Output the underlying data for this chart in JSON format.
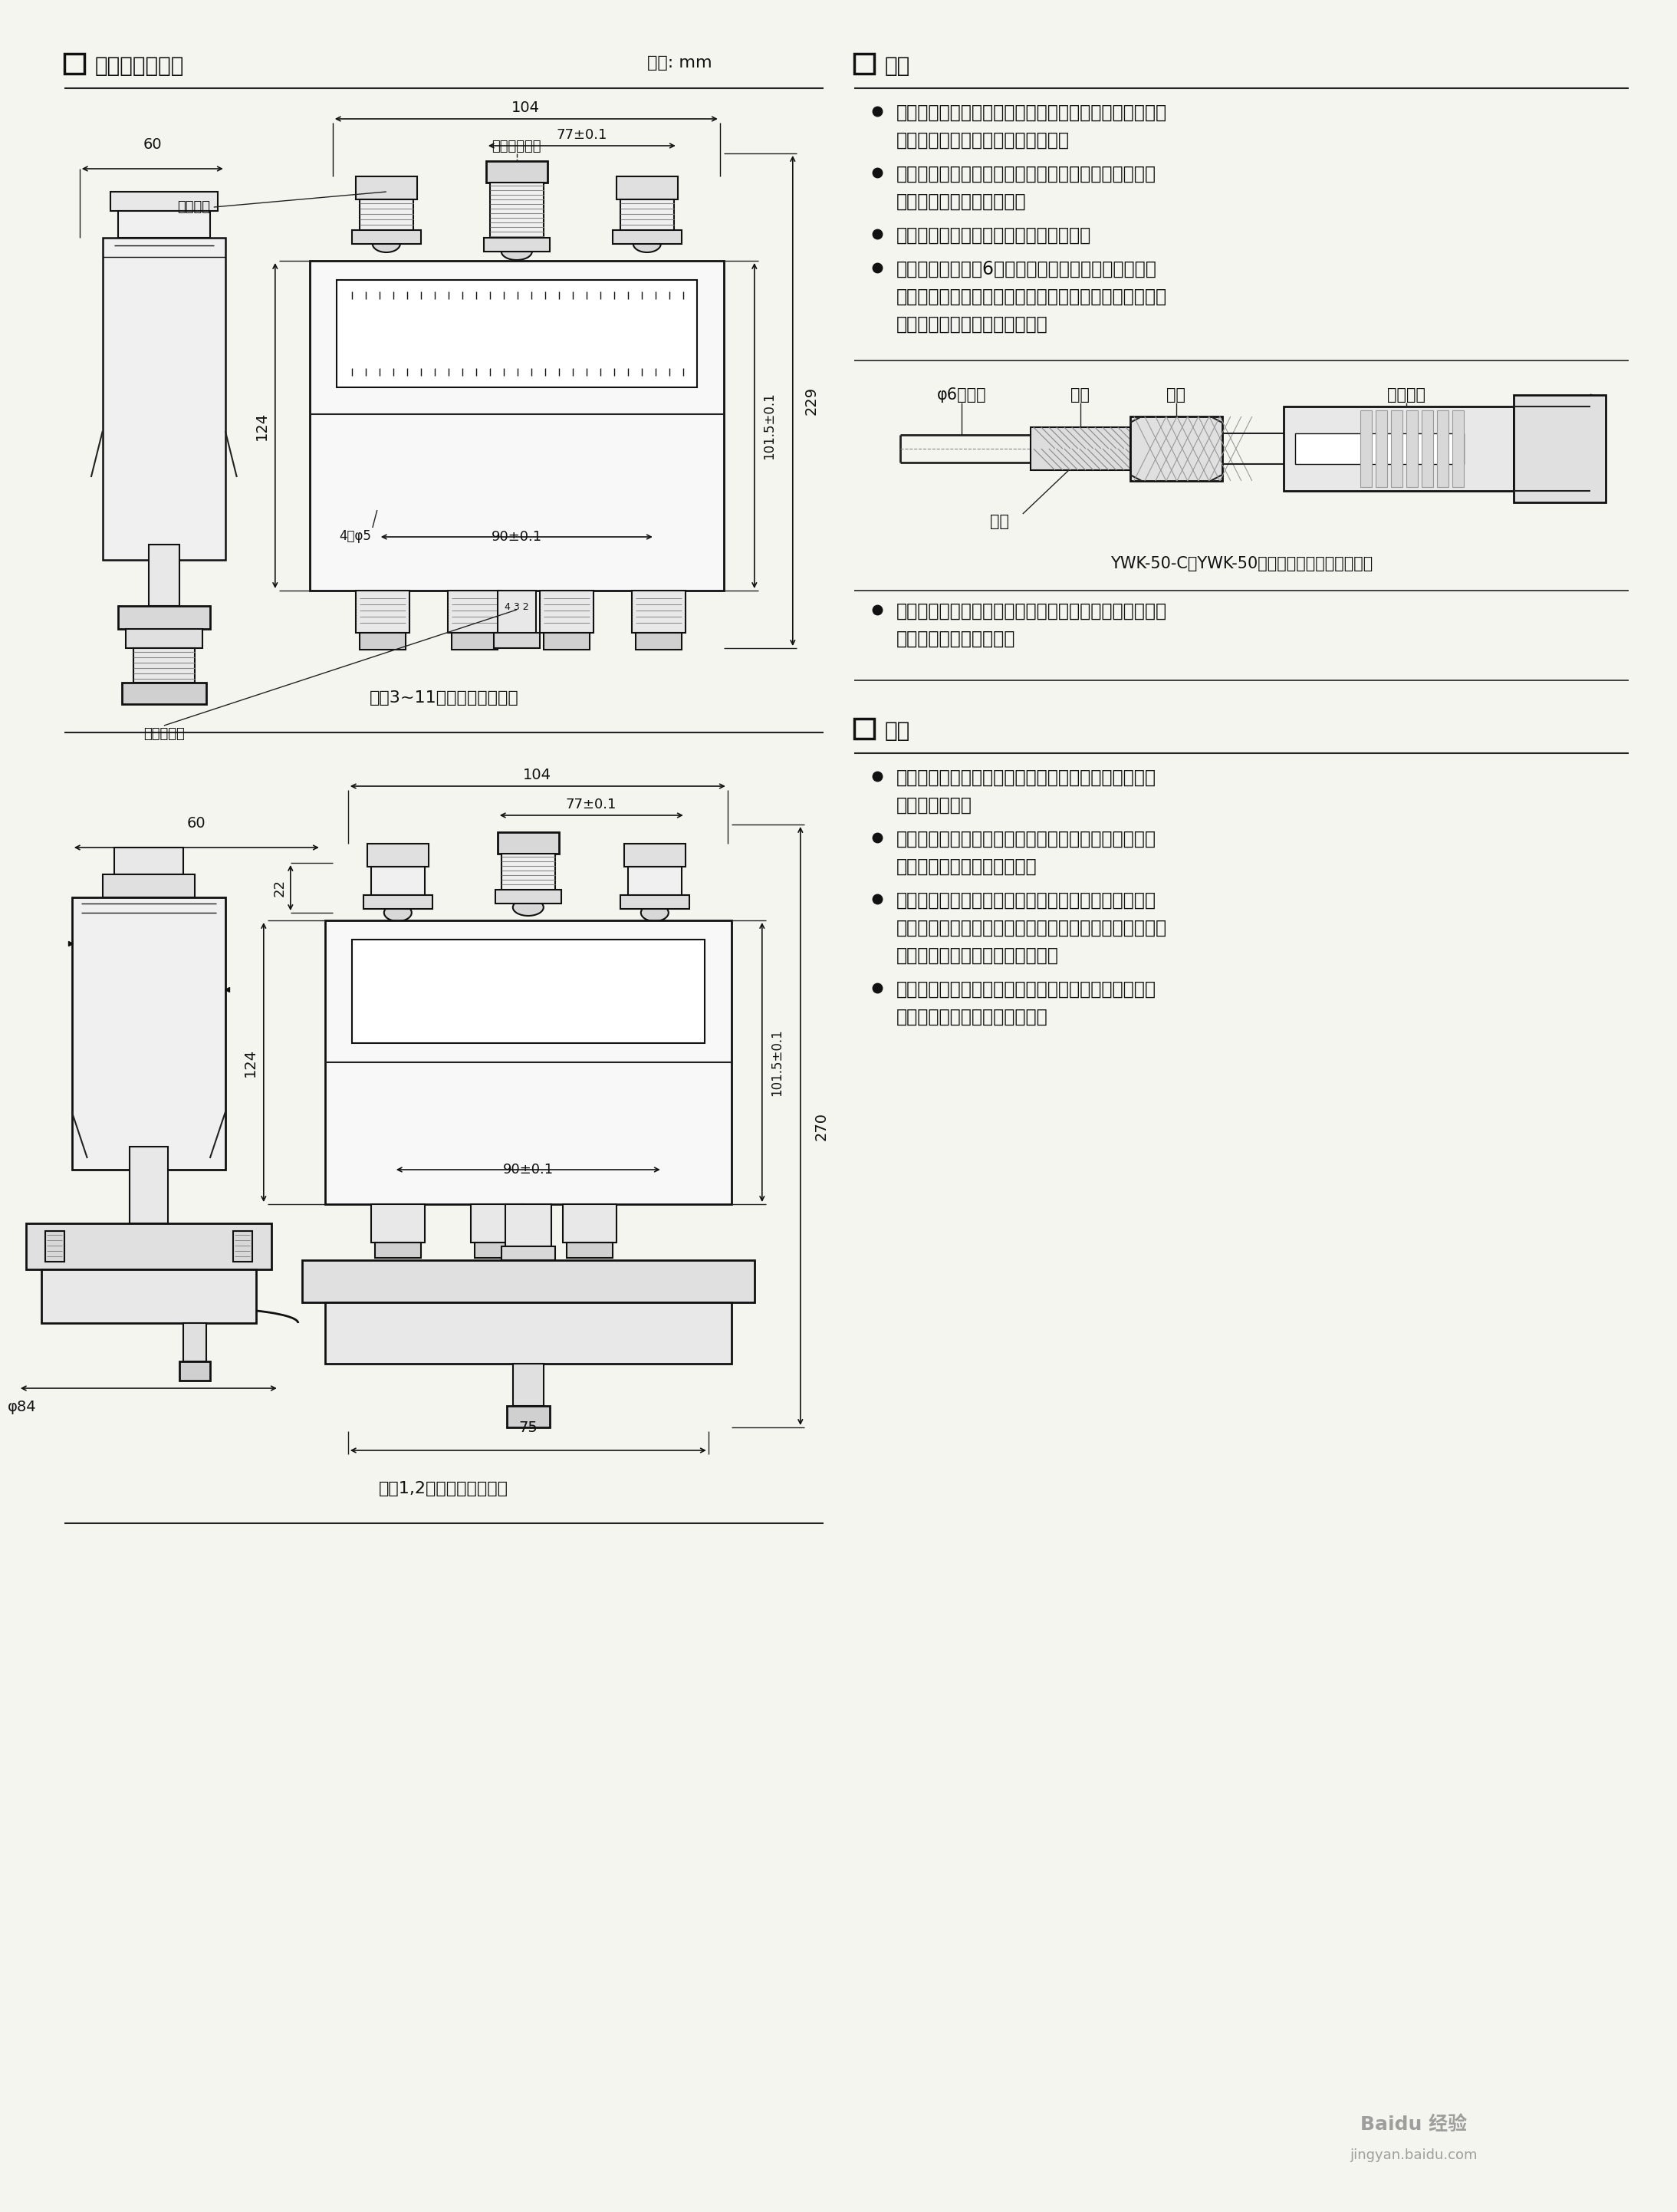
{
  "bg_color": "#f5f5f0",
  "page_width": 21.54,
  "page_height": 28.64,
  "left_section_title": "外形及安装尺寸",
  "left_section_unit": "单位: mm",
  "right_section1_title": "安装",
  "bullet1_line1": "打开表盖，将控制器垂直安装在仪表板上，严禁用手拨动",
  "bullet1_line2": "或用工具碗撞拨臂，以防改变性能。",
  "bullet2_line1": "取下锁紧螺母旋动调节杆，使指针指在所需控制的压力",
  "bullet2_line2": "设定值上，拧紧锁紧螺母。",
  "bullet3_line1": "旋动切换差旋鈕，以获取需要的切换差。",
  "bullet4_line1": "旋下接头将直径为6毫米的金属导压管的一端锡焊在套",
  "bullet4_line2": "筒上，然后旋紧接头使连接管密封，被控介质由金属导压",
  "bullet4_line3": "管进入波纹管室，如下图所示。",
  "pipe_label1": "φ6导压管",
  "pipe_label2": "套筒",
  "pipe_label3": "接头",
  "pipe_label4": "波纹管室",
  "pipe_label5": "锡焊",
  "pipe_caption": "YWK-50-C、YWK-50型压力控制器导压管连接图",
  "extra_bullet_line1": "复查安装是否完切，装好表盖，接通电源。根据控制器使",
  "extra_bullet_line2": "用情况，应作定期校对。",
  "notice_title": "注意",
  "notice1_line1": "控制器指针指示值为下切换值，设定值调节范围即下切",
  "notice1_line2": "换值调节范围。",
  "notice2_line1": "切换差旋鈕上数字仅表示切换差值的大小程度而非实际",
  "notice2_line2": "值，实际值应从标准表读取。",
  "notice3_line1": "被控介质压力不超过某一给定压力值时，指针应调整在",
  "notice3_line2": "比给定值低一个切换差值（即下切换值）的位置上，调整",
  "notice3_line3": "完毕后，不准再旋动切换差旋鈕。",
  "notice4_line1": "规格表中给的切换差调节范围是指保证提供的最小调节",
  "notice4_line2": "范围，实际范围可比表列略宽。",
  "caption1": "序号3~11规格的压力控制器",
  "caption2": "序号1,2规格的压力控制器",
  "label_lock_nut": "锁紧螺母",
  "label_set_rod": "设定值调节杆",
  "label_switch_knob": "切换差旋鈕",
  "dim_104": "104",
  "dim_77": "77±0.1",
  "dim_60": "60",
  "dim_229": "229",
  "dim_101_5": "101.5±0.1",
  "dim_124": "124",
  "dim_90": "90±0.1",
  "dim_holes": "4孔φ5",
  "dim2_104": "104",
  "dim2_77": "77±0.1",
  "dim2_60": "60",
  "dim2_270": "270",
  "dim2_101_5": "101.5±0.1",
  "dim2_124": "124",
  "dim2_90": "90±0.1",
  "dim2_22": "22",
  "dim2_phi84": "φ84",
  "dim2_75": "75",
  "watermark1": "Baidu 经验",
  "watermark2": "jingyan.baidu.com"
}
